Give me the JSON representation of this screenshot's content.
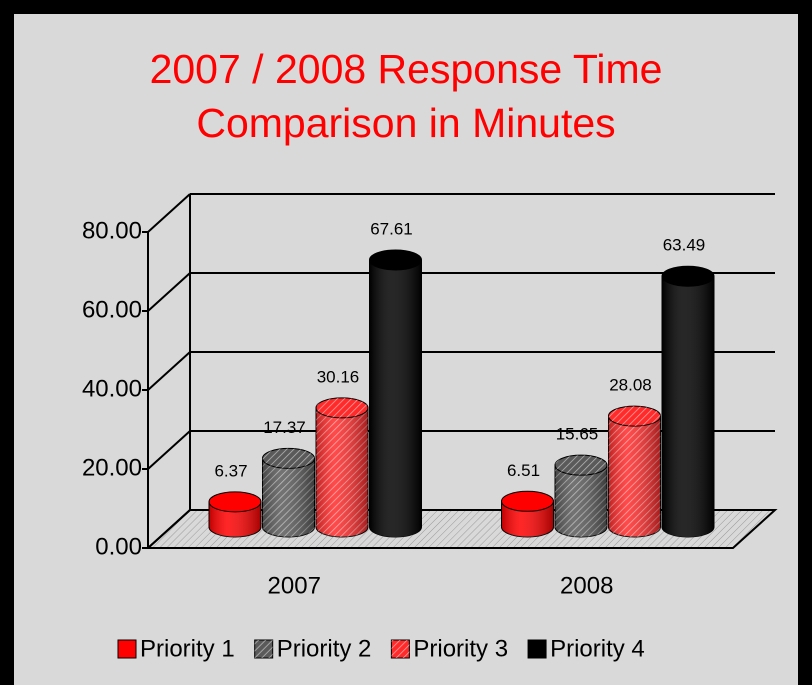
{
  "chart_data": {
    "type": "bar3d",
    "title": "2007 / 2008 Response Time Comparison in Minutes",
    "categories": [
      "2007",
      "2008"
    ],
    "series": [
      {
        "name": "Priority 1",
        "color": "#ff0000",
        "hatched": false,
        "values": [
          6.37,
          6.51
        ]
      },
      {
        "name": "Priority 2",
        "color": "#5a5a5a",
        "hatched": true,
        "values": [
          17.37,
          15.65
        ]
      },
      {
        "name": "Priority 3",
        "color": "#ff2a2a",
        "hatched": true,
        "values": [
          30.16,
          28.08
        ]
      },
      {
        "name": "Priority 4",
        "color": "#000000",
        "hatched": false,
        "values": [
          67.61,
          63.49
        ]
      }
    ],
    "ylim": [
      0,
      80
    ],
    "yticks": [
      {
        "value": 0,
        "label": "0.00"
      },
      {
        "value": 20,
        "label": "20.00"
      },
      {
        "value": 40,
        "label": "40.00"
      },
      {
        "value": 60,
        "label": "60.00"
      },
      {
        "value": 80,
        "label": "80.00"
      }
    ],
    "grid": true,
    "legend": "bottom"
  }
}
